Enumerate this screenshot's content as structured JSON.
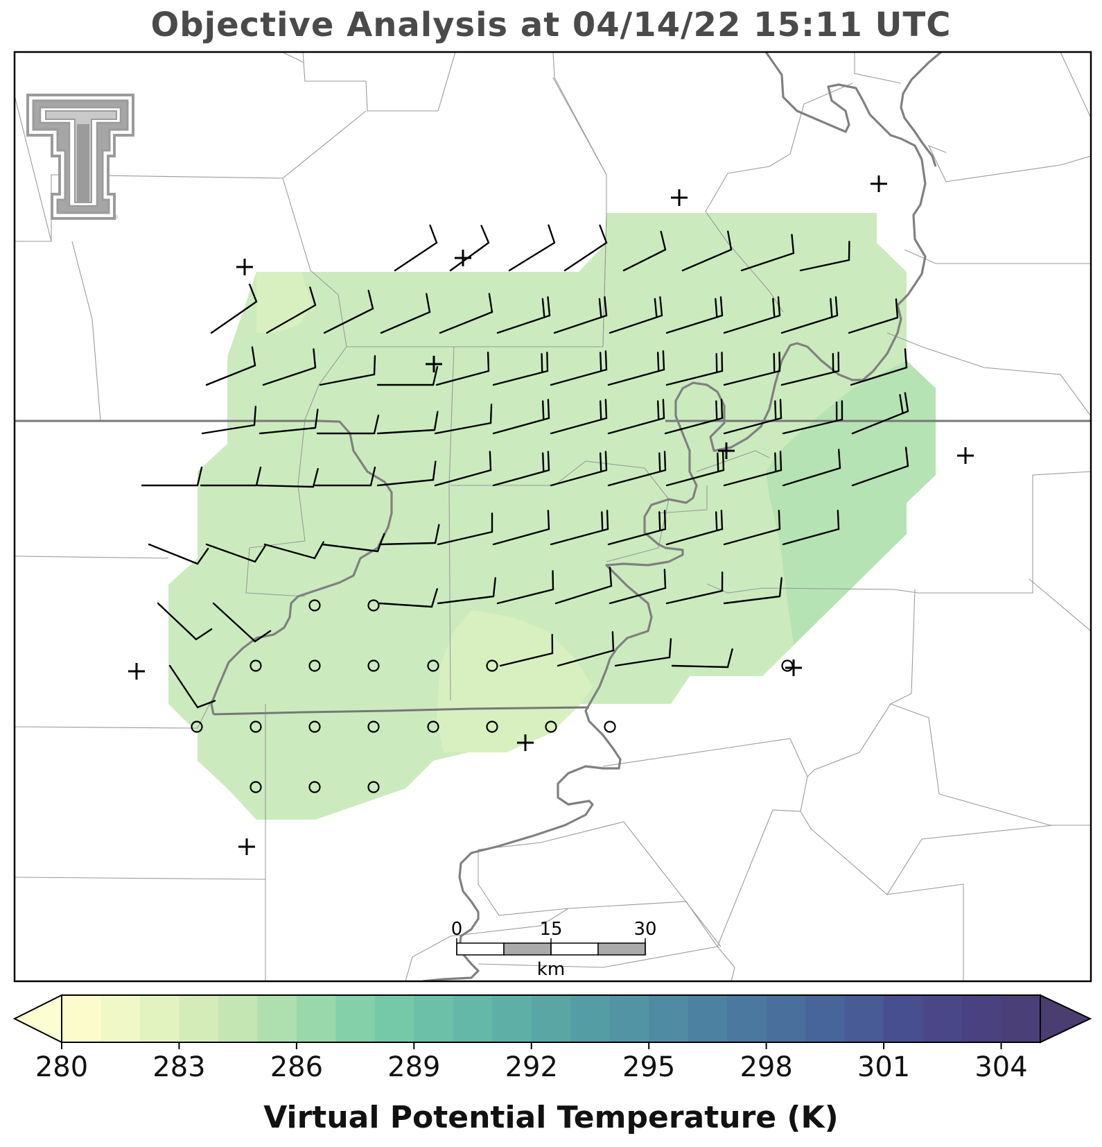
{
  "title": "Objective Analysis at 04/14/22 15:11 UTC",
  "colorbar": {
    "label": "Virtual Potential Temperature (K)",
    "min": 280,
    "step": 1,
    "ticks": [
      "280",
      "283",
      "286",
      "289",
      "292",
      "295",
      "298",
      "301",
      "304"
    ],
    "extend": "both",
    "colors": [
      "#fbfbcc",
      "#eff8c6",
      "#e3f3bf",
      "#d4edb8",
      "#c3e6b2",
      "#aedfae",
      "#98d8ab",
      "#84d0a9",
      "#75c9a8",
      "#6cc0a8",
      "#64b8a7",
      "#5eafa6",
      "#59a6a5",
      "#559da4",
      "#5294a3",
      "#4f8ba2",
      "#4c81a1",
      "#4a789f",
      "#496f9d",
      "#48659a",
      "#485b96",
      "#484f90",
      "#494788",
      "#4a4280",
      "#4b3f77"
    ],
    "under_color": "#fdfdd2",
    "over_color": "#4a3d6f"
  },
  "scale_bar": {
    "labels": [
      "0",
      "15",
      "30"
    ],
    "unit": "km"
  },
  "logo": {
    "name": "Texas Tech Double T",
    "mark": "®"
  },
  "map": {
    "field_color": "#cbebbe",
    "field_warm_color": "#b6e3b3",
    "field_cool_color": "#d8f0c0",
    "station_symbols": {
      "missing": "+",
      "calm": "o"
    }
  }
}
